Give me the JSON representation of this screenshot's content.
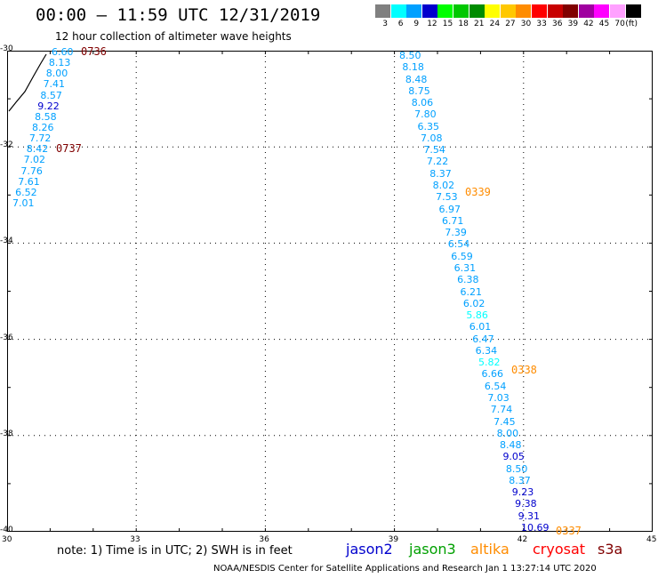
{
  "header": {
    "title": "00:00 — 11:59 UTC 12/31/2019",
    "subtitle": "12 hour collection of altimeter wave heights"
  },
  "legend": {
    "colors": [
      "#808080",
      "#00ffff",
      "#00a0ff",
      "#0000cd",
      "#00ff00",
      "#00c800",
      "#008c00",
      "#ffff00",
      "#ffc800",
      "#ff8c00",
      "#ff0000",
      "#c80000",
      "#800000",
      "#a000a0",
      "#ff00ff",
      "#ffa0ff",
      "#000000"
    ],
    "labels": [
      "3",
      "6",
      "9",
      "12",
      "15",
      "18",
      "21",
      "24",
      "27",
      "30",
      "33",
      "36",
      "39",
      "42",
      "45",
      "70",
      "(ft)"
    ]
  },
  "axes": {
    "y_labels": [
      "-30",
      "-32",
      "-34",
      "-36",
      "-38",
      "-40"
    ],
    "x_labels": [
      "30",
      "33",
      "36",
      "39",
      "42",
      "45"
    ]
  },
  "tracks": [
    {
      "values": [
        {
          "v": "6.60",
          "c": "#00a0ff"
        },
        {
          "v": "8.13",
          "c": "#00a0ff"
        },
        {
          "v": "8.00",
          "c": "#00a0ff"
        },
        {
          "v": "7.41",
          "c": "#00a0ff"
        },
        {
          "v": "8.57",
          "c": "#00a0ff"
        },
        {
          "v": "9.22",
          "c": "#0000cd"
        },
        {
          "v": "8.58",
          "c": "#00a0ff"
        },
        {
          "v": "8.26",
          "c": "#00a0ff"
        },
        {
          "v": "7.72",
          "c": "#00a0ff"
        },
        {
          "v": "8.42",
          "c": "#00a0ff"
        },
        {
          "v": "7.02",
          "c": "#00a0ff"
        },
        {
          "v": "7.76",
          "c": "#00a0ff"
        },
        {
          "v": "7.61",
          "c": "#00a0ff"
        },
        {
          "v": "6.52",
          "c": "#00a0ff"
        },
        {
          "v": "7.01",
          "c": "#00a0ff"
        }
      ]
    },
    {
      "values": [
        {
          "v": "8.50",
          "c": "#00a0ff"
        },
        {
          "v": "8.18",
          "c": "#00a0ff"
        },
        {
          "v": "8.48",
          "c": "#00a0ff"
        },
        {
          "v": "8.75",
          "c": "#00a0ff"
        },
        {
          "v": "8.06",
          "c": "#00a0ff"
        },
        {
          "v": "7.80",
          "c": "#00a0ff"
        },
        {
          "v": "6.35",
          "c": "#00a0ff"
        },
        {
          "v": "7.08",
          "c": "#00a0ff"
        },
        {
          "v": "7.54",
          "c": "#00a0ff"
        },
        {
          "v": "7.22",
          "c": "#00a0ff"
        },
        {
          "v": "8.37",
          "c": "#00a0ff"
        },
        {
          "v": "8.02",
          "c": "#00a0ff"
        },
        {
          "v": "7.53",
          "c": "#00a0ff"
        },
        {
          "v": "6.97",
          "c": "#00a0ff"
        },
        {
          "v": "6.71",
          "c": "#00a0ff"
        },
        {
          "v": "7.39",
          "c": "#00a0ff"
        },
        {
          "v": "6.54",
          "c": "#00a0ff"
        },
        {
          "v": "6.59",
          "c": "#00a0ff"
        },
        {
          "v": "6.31",
          "c": "#00a0ff"
        },
        {
          "v": "6.38",
          "c": "#00a0ff"
        },
        {
          "v": "6.21",
          "c": "#00a0ff"
        },
        {
          "v": "6.02",
          "c": "#00a0ff"
        },
        {
          "v": "5.86",
          "c": "#00ffff"
        },
        {
          "v": "6.01",
          "c": "#00a0ff"
        },
        {
          "v": "6.47",
          "c": "#00a0ff"
        },
        {
          "v": "6.34",
          "c": "#00a0ff"
        },
        {
          "v": "5.82",
          "c": "#00ffff"
        },
        {
          "v": "6.66",
          "c": "#00a0ff"
        },
        {
          "v": "6.54",
          "c": "#00a0ff"
        },
        {
          "v": "7.03",
          "c": "#00a0ff"
        },
        {
          "v": "7.74",
          "c": "#00a0ff"
        },
        {
          "v": "7.45",
          "c": "#00a0ff"
        },
        {
          "v": "8.00",
          "c": "#00a0ff"
        },
        {
          "v": "8.48",
          "c": "#00a0ff"
        },
        {
          "v": "9.05",
          "c": "#0000cd"
        },
        {
          "v": "8.50",
          "c": "#00a0ff"
        },
        {
          "v": "8.37",
          "c": "#00a0ff"
        },
        {
          "v": "9.23",
          "c": "#0000cd"
        },
        {
          "v": "9.38",
          "c": "#0000cd"
        },
        {
          "v": "9.31",
          "c": "#0000cd"
        },
        {
          "v": "10.69",
          "c": "#0000cd"
        }
      ]
    }
  ],
  "time_labels": [
    {
      "t": "0736",
      "c": "#800000"
    },
    {
      "t": "0737",
      "c": "#800000"
    },
    {
      "t": "0339",
      "c": "#ff8c00"
    },
    {
      "t": "0338",
      "c": "#ff8c00"
    },
    {
      "t": "0337",
      "c": "#ff8c00"
    }
  ],
  "footer": {
    "note": "note:  1) Time is in UTC;  2) SWH is in feet",
    "satellites": [
      {
        "name": "jason2",
        "color": "#0000cd"
      },
      {
        "name": "jason3",
        "color": "#00a000"
      },
      {
        "name": "altika",
        "color": "#ff8c00"
      },
      {
        "name": "cryosat",
        "color": "#ff0000"
      },
      {
        "name": "s3a",
        "color": "#800000"
      }
    ],
    "credit": "NOAA/NESDIS Center for Satellite Applications and Research    Jan  1 13:27:14 UTC 2020"
  }
}
